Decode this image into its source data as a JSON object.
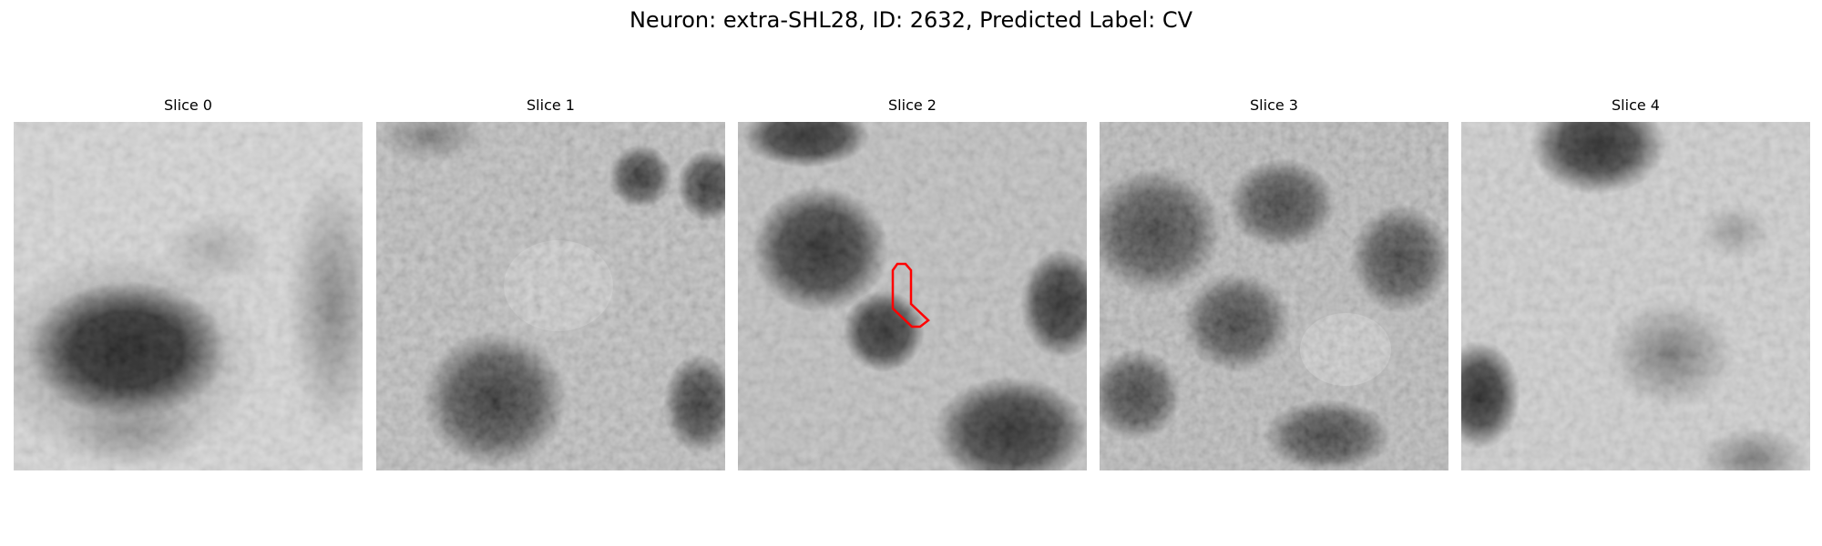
{
  "figure": {
    "title": "Neuron: extra-SHL28, ID: 2632, Predicted Label: CV"
  },
  "panels": [
    {
      "title": "Slice 0"
    },
    {
      "title": "Slice 1"
    },
    {
      "title": "Slice 2"
    },
    {
      "title": "Slice 3"
    },
    {
      "title": "Slice 4"
    }
  ],
  "colors": {
    "background": "#ffffff",
    "contour": "#ff0000",
    "colormap": "gray"
  }
}
